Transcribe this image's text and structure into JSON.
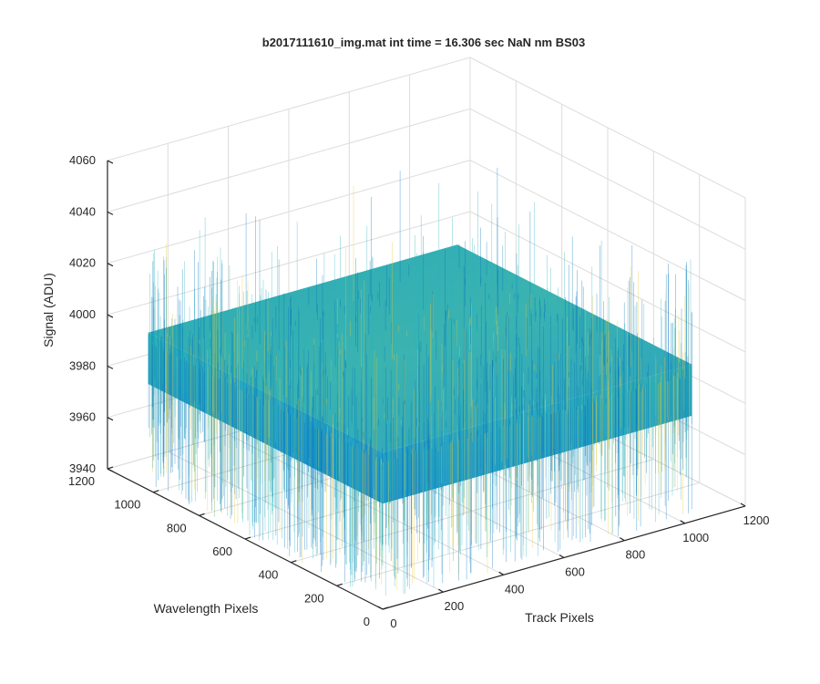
{
  "chart_data": {
    "type": "surface",
    "title": "b2017111610_img.mat int time = 16.306 sec  NaN nm BS03",
    "xlabel": "Track Pixels",
    "ylabel": "Wavelength Pixels",
    "zlabel": "Signal (ADU)",
    "xlim": [
      0,
      1200
    ],
    "ylim": [
      0,
      1200
    ],
    "zlim": [
      3940,
      4060
    ],
    "x_ticks": [
      "0",
      "200",
      "400",
      "600",
      "800",
      "1000",
      "1200"
    ],
    "y_ticks": [
      "0",
      "200",
      "400",
      "600",
      "800",
      "1000",
      "1200"
    ],
    "z_ticks": [
      "3940",
      "3960",
      "3980",
      "4000",
      "4020",
      "4040",
      "4060"
    ],
    "data_extent": {
      "x": [
        1,
        1024
      ],
      "y": [
        1,
        1024
      ]
    },
    "signal_mean": 3993,
    "signal_noise_range": [
      3950,
      4040
    ],
    "grid": true,
    "colormap": "parula",
    "colors": {
      "low": "#0072bd",
      "mid": "#2bb4b9",
      "high": "#e6c83a"
    }
  }
}
